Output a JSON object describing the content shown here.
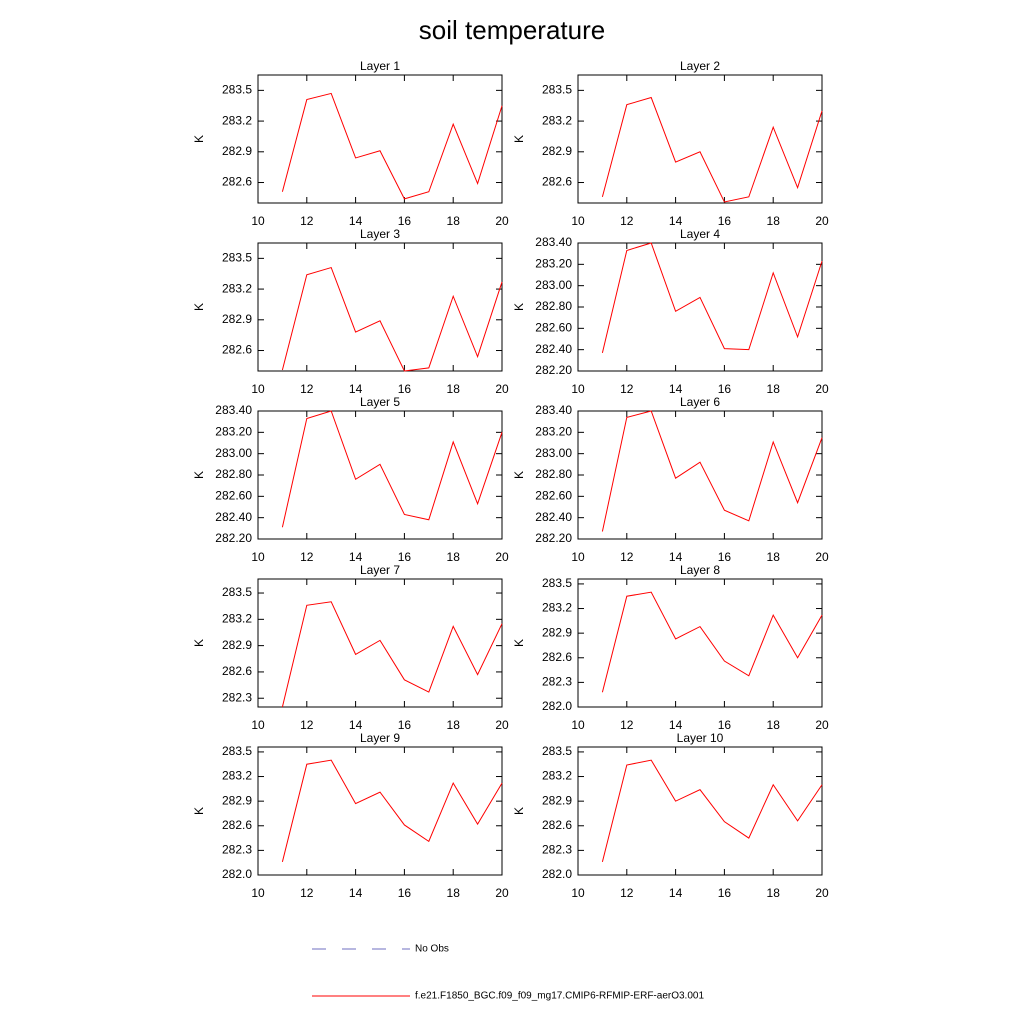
{
  "title": "soil temperature",
  "legend": [
    {
      "name": "No Obs",
      "color": "#6f6fc0",
      "style": "dashed"
    },
    {
      "name": "f.e21.F1850_BGC.f09_f09_mg17.CMIP6-RFMIP-ERF-aerO3.001",
      "color": "#ff0000",
      "style": "solid"
    }
  ],
  "chart_data": [
    {
      "type": "line",
      "title": "Layer 1",
      "ylabel": "K",
      "x": [
        11,
        12,
        13,
        14,
        15,
        16,
        17,
        18,
        19,
        20
      ],
      "xlim": [
        10,
        20
      ],
      "xticks": [
        10,
        12,
        14,
        16,
        18,
        20
      ],
      "ylim": [
        282.4,
        283.65
      ],
      "yticks": [
        282.6,
        282.9,
        283.2,
        283.5
      ],
      "color": "#ff0000",
      "values": [
        282.51,
        283.41,
        283.47,
        282.84,
        282.91,
        282.44,
        282.51,
        283.17,
        282.59,
        283.35
      ]
    },
    {
      "type": "line",
      "title": "Layer 2",
      "ylabel": "K",
      "x": [
        11,
        12,
        13,
        14,
        15,
        16,
        17,
        18,
        19,
        20
      ],
      "xlim": [
        10,
        20
      ],
      "xticks": [
        10,
        12,
        14,
        16,
        18,
        20
      ],
      "ylim": [
        282.4,
        283.65
      ],
      "yticks": [
        282.6,
        282.9,
        283.2,
        283.5
      ],
      "color": "#ff0000",
      "values": [
        282.46,
        283.36,
        283.43,
        282.8,
        282.9,
        282.41,
        282.46,
        283.14,
        282.55,
        283.3
      ]
    },
    {
      "type": "line",
      "title": "Layer 3",
      "ylabel": "K",
      "x": [
        11,
        12,
        13,
        14,
        15,
        16,
        17,
        18,
        19,
        20
      ],
      "xlim": [
        10,
        20
      ],
      "xticks": [
        10,
        12,
        14,
        16,
        18,
        20
      ],
      "ylim": [
        282.4,
        283.65
      ],
      "yticks": [
        282.6,
        282.9,
        283.2,
        283.5
      ],
      "color": "#ff0000",
      "values": [
        282.41,
        283.34,
        283.41,
        282.78,
        282.89,
        282.4,
        282.43,
        283.13,
        282.54,
        283.27
      ]
    },
    {
      "type": "line",
      "title": "Layer 4",
      "ylabel": "K",
      "x": [
        11,
        12,
        13,
        14,
        15,
        16,
        17,
        18,
        19,
        20
      ],
      "xlim": [
        10,
        20
      ],
      "xticks": [
        10,
        12,
        14,
        16,
        18,
        20
      ],
      "ylim": [
        282.2,
        283.4
      ],
      "yticks": [
        {
          "value": 282.2,
          "label": "282.20"
        },
        {
          "value": 282.4,
          "label": "282.40"
        },
        {
          "value": 282.6,
          "label": "282.60"
        },
        {
          "value": 282.8,
          "label": "282.80"
        },
        {
          "value": 283.0,
          "label": "283.00"
        },
        {
          "value": 283.2,
          "label": "283.20"
        },
        {
          "value": 283.4,
          "label": "283.40"
        }
      ],
      "color": "#ff0000",
      "values": [
        282.37,
        283.33,
        283.4,
        282.76,
        282.89,
        282.41,
        282.4,
        283.12,
        282.52,
        283.23
      ]
    },
    {
      "type": "line",
      "title": "Layer 5",
      "ylabel": "K",
      "x": [
        11,
        12,
        13,
        14,
        15,
        16,
        17,
        18,
        19,
        20
      ],
      "xlim": [
        10,
        20
      ],
      "xticks": [
        10,
        12,
        14,
        16,
        18,
        20
      ],
      "ylim": [
        282.2,
        283.4
      ],
      "yticks": [
        {
          "value": 282.2,
          "label": "282.20"
        },
        {
          "value": 282.4,
          "label": "282.40"
        },
        {
          "value": 282.6,
          "label": "282.60"
        },
        {
          "value": 282.8,
          "label": "282.80"
        },
        {
          "value": 283.0,
          "label": "283.00"
        },
        {
          "value": 283.2,
          "label": "283.20"
        },
        {
          "value": 283.4,
          "label": "283.40"
        }
      ],
      "color": "#ff0000",
      "values": [
        282.31,
        283.33,
        283.4,
        282.76,
        282.9,
        282.43,
        282.38,
        283.11,
        282.53,
        283.2
      ]
    },
    {
      "type": "line",
      "title": "Layer 6",
      "ylabel": "K",
      "x": [
        11,
        12,
        13,
        14,
        15,
        16,
        17,
        18,
        19,
        20
      ],
      "xlim": [
        10,
        20
      ],
      "xticks": [
        10,
        12,
        14,
        16,
        18,
        20
      ],
      "ylim": [
        282.2,
        283.4
      ],
      "yticks": [
        {
          "value": 282.2,
          "label": "282.20"
        },
        {
          "value": 282.4,
          "label": "282.40"
        },
        {
          "value": 282.6,
          "label": "282.60"
        },
        {
          "value": 282.8,
          "label": "282.80"
        },
        {
          "value": 283.0,
          "label": "283.00"
        },
        {
          "value": 283.2,
          "label": "283.20"
        },
        {
          "value": 283.4,
          "label": "283.40"
        }
      ],
      "color": "#ff0000",
      "values": [
        282.27,
        283.34,
        283.4,
        282.77,
        282.92,
        282.47,
        282.37,
        283.11,
        282.54,
        283.15
      ]
    },
    {
      "type": "line",
      "title": "Layer 7",
      "ylabel": "K",
      "x": [
        11,
        12,
        13,
        14,
        15,
        16,
        17,
        18,
        19,
        20
      ],
      "xlim": [
        10,
        20
      ],
      "xticks": [
        10,
        12,
        14,
        16,
        18,
        20
      ],
      "ylim": [
        282.2,
        283.66
      ],
      "yticks": [
        282.3,
        282.6,
        282.9,
        283.2,
        283.5
      ],
      "color": "#ff0000",
      "values": [
        282.2,
        283.36,
        283.4,
        282.8,
        282.96,
        282.51,
        282.37,
        283.12,
        282.57,
        283.15
      ]
    },
    {
      "type": "line",
      "title": "Layer 8",
      "ylabel": "K",
      "x": [
        11,
        12,
        13,
        14,
        15,
        16,
        17,
        18,
        19,
        20
      ],
      "xlim": [
        10,
        20
      ],
      "xticks": [
        10,
        12,
        14,
        16,
        18,
        20
      ],
      "ylim": [
        282.0,
        283.56
      ],
      "yticks": [
        {
          "value": 282.0,
          "label": "282.0"
        },
        282.3,
        282.6,
        282.9,
        283.2,
        283.5
      ],
      "color": "#ff0000",
      "values": [
        282.18,
        283.35,
        283.4,
        282.83,
        282.98,
        282.56,
        282.38,
        283.12,
        282.6,
        283.12
      ]
    },
    {
      "type": "line",
      "title": "Layer 9",
      "ylabel": "K",
      "x": [
        11,
        12,
        13,
        14,
        15,
        16,
        17,
        18,
        19,
        20
      ],
      "xlim": [
        10,
        20
      ],
      "xticks": [
        10,
        12,
        14,
        16,
        18,
        20
      ],
      "ylim": [
        282.0,
        283.56
      ],
      "yticks": [
        {
          "value": 282.0,
          "label": "282.0"
        },
        282.3,
        282.6,
        282.9,
        283.2,
        283.5
      ],
      "color": "#ff0000",
      "values": [
        282.16,
        283.35,
        283.4,
        282.87,
        283.01,
        282.61,
        282.41,
        283.12,
        282.62,
        283.12
      ]
    },
    {
      "type": "line",
      "title": "Layer 10",
      "ylabel": "K",
      "x": [
        11,
        12,
        13,
        14,
        15,
        16,
        17,
        18,
        19,
        20
      ],
      "xlim": [
        10,
        20
      ],
      "xticks": [
        10,
        12,
        14,
        16,
        18,
        20
      ],
      "ylim": [
        282.0,
        283.56
      ],
      "yticks": [
        {
          "value": 282.0,
          "label": "282.0"
        },
        282.3,
        282.6,
        282.9,
        283.2,
        283.5
      ],
      "color": "#ff0000",
      "values": [
        282.16,
        283.34,
        283.4,
        282.9,
        283.04,
        282.65,
        282.45,
        283.1,
        282.66,
        283.1
      ]
    }
  ]
}
